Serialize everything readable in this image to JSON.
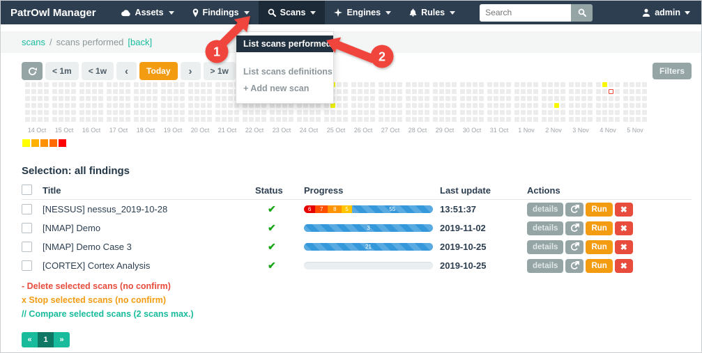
{
  "navbar": {
    "brand": "PatrOwl Manager",
    "items": [
      {
        "id": "assets",
        "label": "Assets",
        "icon": "cloud",
        "active": false
      },
      {
        "id": "findings",
        "label": "Findings",
        "icon": "map-pin",
        "active": false
      },
      {
        "id": "scans",
        "label": "Scans",
        "icon": "magnifier",
        "active": true
      },
      {
        "id": "engines",
        "label": "Engines",
        "icon": "star4",
        "active": false
      },
      {
        "id": "rules",
        "label": "Rules",
        "icon": "bell",
        "active": false
      }
    ],
    "search_placeholder": "Search",
    "user": "admin"
  },
  "breadcrumb": {
    "root": "scans",
    "separator": "/",
    "current": "scans performed",
    "back": "[back]"
  },
  "scans_menu": {
    "items": [
      "List scans performed",
      "List scans definitions",
      "+ Add new scan"
    ],
    "active_index": 0
  },
  "annotations": {
    "step1": "1",
    "step2": "2",
    "color": "#ef453e"
  },
  "timenav": {
    "buttons": [
      {
        "id": "refresh",
        "icon": "refresh",
        "label": ""
      },
      {
        "id": "back-1m",
        "label": "< 1m"
      },
      {
        "id": "back-1w",
        "label": "< 1w"
      },
      {
        "id": "prev",
        "label": "‹",
        "chevron": true
      },
      {
        "id": "today",
        "label": "Today",
        "active": true
      },
      {
        "id": "next",
        "label": "›",
        "chevron": true
      },
      {
        "id": "fwd-1w",
        "label": "> 1w"
      },
      {
        "id": "fwd-1m",
        "label": "> 1m"
      }
    ],
    "filters_label": "Filters"
  },
  "heatmap": {
    "dates": [
      "14 Oct",
      "15 Oct",
      "16 Oct",
      "17 Oct",
      "18 Oct",
      "19 Oct",
      "20 Oct",
      "21 Oct",
      "22 Oct",
      "23 Oct",
      "24 Oct",
      "25 Oct",
      "26 Oct",
      "27 Oct",
      "28 Oct",
      "29 Oct",
      "30 Oct",
      "31 Oct",
      "1 Nov",
      "2 Nov",
      "3 Nov",
      "4 Nov",
      "5 Nov"
    ],
    "rows": 6,
    "cols_per_date": 4,
    "cell_color": "#ececec",
    "highlight_color": "#f7f700",
    "highlights": [
      {
        "date_index": 11,
        "row": 0,
        "col": 1,
        "kind": "filled"
      },
      {
        "date_index": 11,
        "row": 3,
        "col": 1,
        "kind": "filled"
      },
      {
        "date_index": 19,
        "row": 3,
        "col": 2,
        "kind": "filled"
      },
      {
        "date_index": 21,
        "row": 0,
        "col": 1,
        "kind": "filled"
      },
      {
        "date_index": 21,
        "row": 1,
        "col": 2,
        "kind": "outlined",
        "border": "#ef4836"
      }
    ],
    "legend_colors": [
      "#ffff00",
      "#ffb100",
      "#ff9100",
      "#ff6b00",
      "#ff0000"
    ]
  },
  "selection": {
    "label": "Selection:",
    "value": "all findings"
  },
  "table": {
    "headers": {
      "title": "Title",
      "status": "Status",
      "progress": "Progress",
      "last_update": "Last update",
      "actions": "Actions"
    },
    "rows": [
      {
        "title": "[NESSUS] nessus_2019-10-28",
        "status": "completed",
        "last_update": "13:51:37",
        "progress": {
          "type": "stacked",
          "segments": [
            {
              "value": "6",
              "color": "#e60000"
            },
            {
              "value": "7",
              "color": "#ff4e00"
            },
            {
              "value": "8",
              "color": "#ff9300"
            },
            {
              "value": "5",
              "color": "#ffc400"
            },
            {
              "value": "55",
              "color": "blue"
            }
          ]
        }
      },
      {
        "title": "[NMAP] Demo",
        "status": "completed",
        "last_update": "2019-11-02",
        "progress": {
          "type": "bar",
          "value": "3"
        }
      },
      {
        "title": "[NMAP] Demo Case 3",
        "status": "completed",
        "last_update": "2019-10-25",
        "progress": {
          "type": "bar",
          "value": "21"
        }
      },
      {
        "title": "[CORTEX] Cortex Analysis",
        "status": "completed",
        "last_update": "2019-10-25",
        "progress": {
          "type": "empty",
          "value": ""
        }
      }
    ],
    "action_labels": {
      "details": "details",
      "run": "Run",
      "delete": "✖"
    }
  },
  "footer_links": [
    {
      "id": "delete-scans",
      "text": "- Delete selected scans (no confirm)",
      "color": "#e74c3c"
    },
    {
      "id": "stop-scans",
      "text": "x Stop selected scans (no confirm)",
      "color": "#f39c12"
    },
    {
      "id": "compare-scans",
      "text": "// Compare selected scans (2 scans max.)",
      "color": "#18bc9c"
    }
  ],
  "pagination": {
    "prev": "«",
    "page": "1",
    "next": "»"
  },
  "colors": {
    "navbar": "#2c3e50",
    "accent": "#18bc9c",
    "orange": "#f39c12",
    "red": "#e74c3c",
    "gray_button": "#95a5a6",
    "progress_blue": "#3498db"
  }
}
